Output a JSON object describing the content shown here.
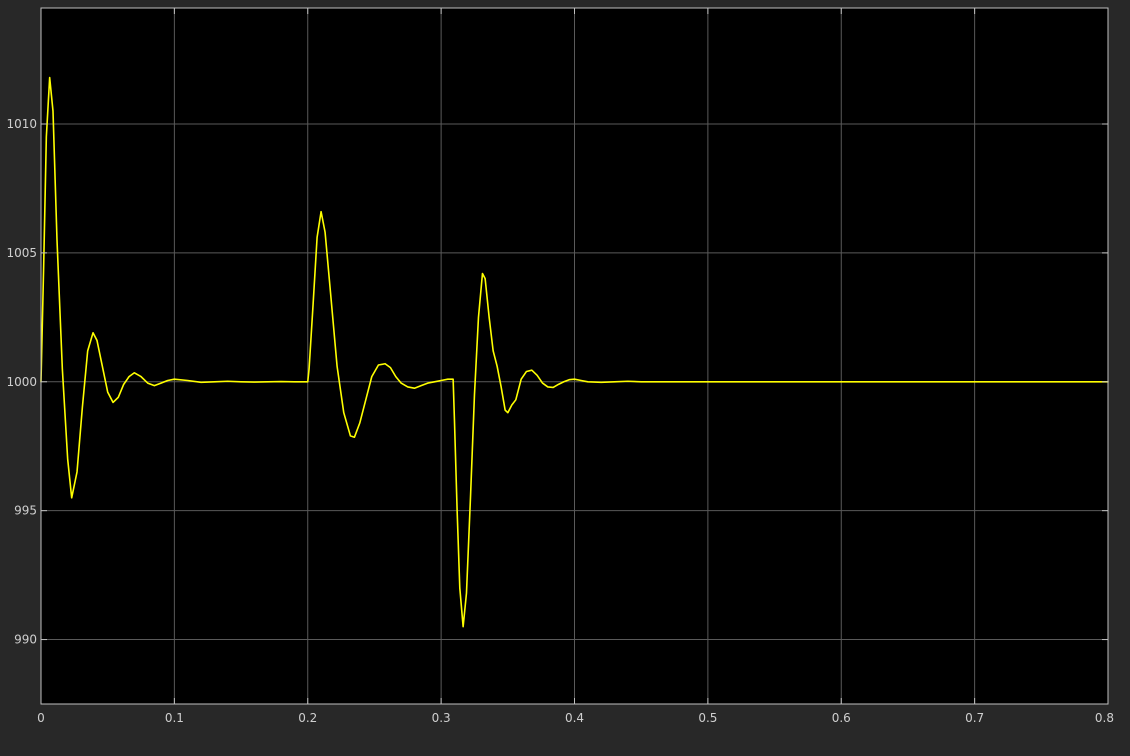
{
  "colors": {
    "background": "#282828",
    "plot_area": "#000000",
    "grid": "#5a5a5a",
    "axis": "#c0c0c0",
    "trace": "#ffff00",
    "tick_text": "#cfcfcf"
  },
  "chart_data": {
    "type": "line",
    "title": "",
    "xlabel": "",
    "ylabel": "",
    "xlim": [
      0,
      0.8
    ],
    "ylim": [
      987.5,
      1014.5
    ],
    "grid": true,
    "legend": "none",
    "x_ticks": [
      0,
      0.1,
      0.2,
      0.3,
      0.4,
      0.5,
      0.6,
      0.7,
      0.8
    ],
    "x_tick_labels": [
      "0",
      "0.1",
      "0.2",
      "0.3",
      "0.4",
      "0.5",
      "0.6",
      "0.7",
      "0.8"
    ],
    "y_ticks": [
      990,
      995,
      1000,
      1005,
      1010
    ],
    "y_tick_labels": [
      "990",
      "995",
      "1000",
      "1005",
      "1010"
    ],
    "series": [
      {
        "color": "#ffff00",
        "x": [
          0,
          0.002,
          0.004,
          0.0065,
          0.009,
          0.012,
          0.016,
          0.02,
          0.023,
          0.027,
          0.031,
          0.035,
          0.039,
          0.042,
          0.046,
          0.05,
          0.054,
          0.058,
          0.062,
          0.066,
          0.07,
          0.075,
          0.08,
          0.085,
          0.09,
          0.095,
          0.1,
          0.11,
          0.12,
          0.13,
          0.14,
          0.15,
          0.16,
          0.17,
          0.18,
          0.19,
          0.2,
          0.201,
          0.204,
          0.207,
          0.21,
          0.213,
          0.217,
          0.222,
          0.227,
          0.232,
          0.235,
          0.239,
          0.243,
          0.248,
          0.253,
          0.258,
          0.262,
          0.266,
          0.27,
          0.275,
          0.28,
          0.285,
          0.29,
          0.295,
          0.3,
          0.305,
          0.309,
          0.31,
          0.312,
          0.314,
          0.3165,
          0.319,
          0.322,
          0.325,
          0.328,
          0.331,
          0.333,
          0.336,
          0.339,
          0.342,
          0.345,
          0.348,
          0.35,
          0.353,
          0.356,
          0.36,
          0.364,
          0.368,
          0.372,
          0.376,
          0.38,
          0.384,
          0.388,
          0.392,
          0.396,
          0.4,
          0.405,
          0.41,
          0.42,
          0.43,
          0.44,
          0.45,
          0.5,
          0.55,
          0.6,
          0.65,
          0.7,
          0.75,
          0.8
        ],
        "y": [
          1000,
          1004.5,
          1009.5,
          1011.8,
          1010.5,
          1005.5,
          1000.5,
          997,
          995.5,
          996.5,
          999,
          1001.2,
          1001.9,
          1001.6,
          1000.6,
          999.6,
          999.2,
          999.4,
          999.9,
          1000.2,
          1000.35,
          1000.2,
          999.95,
          999.85,
          999.95,
          1000.05,
          1000.1,
          1000.05,
          999.98,
          1000,
          1000.02,
          1000,
          999.99,
          1000,
          1000.01,
          1000,
          1000,
          1000.5,
          1003,
          1005.6,
          1006.6,
          1005.8,
          1003.5,
          1000.6,
          998.8,
          997.9,
          997.85,
          998.4,
          999.2,
          1000.2,
          1000.65,
          1000.7,
          1000.55,
          1000.2,
          999.95,
          999.8,
          999.75,
          999.85,
          999.95,
          1000,
          1000.05,
          1000.1,
          1000.1,
          998.5,
          995,
          992,
          990.5,
          991.8,
          995.5,
          999.5,
          1002.5,
          1004.2,
          1004,
          1002.5,
          1001.2,
          1000.6,
          999.8,
          998.9,
          998.8,
          999.1,
          999.3,
          1000.1,
          1000.4,
          1000.45,
          1000.25,
          999.95,
          999.8,
          999.78,
          999.9,
          1000,
          1000.08,
          1000.1,
          1000.05,
          1000,
          999.98,
          1000,
          1000.02,
          1000,
          1000,
          1000,
          1000,
          1000,
          1000,
          1000,
          1000
        ]
      }
    ]
  }
}
